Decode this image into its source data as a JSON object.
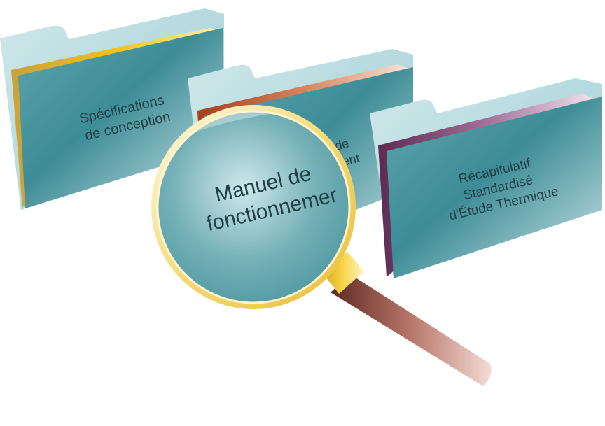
{
  "folders": [
    {
      "lines": [
        "Spécifications",
        "de conception"
      ],
      "accent": "#f2c21a"
    },
    {
      "lines": [
        "de",
        "nent"
      ],
      "accent": "#c4542c"
    },
    {
      "lines": [
        "Récapitulatif",
        "Standardisé",
        "d'Étude Thermique"
      ],
      "accent": "#7a3f6c"
    }
  ],
  "magnifier": {
    "lines": [
      "Manuel de",
      "fonctionnemer"
    ],
    "rim_color": "#f4d978",
    "handle_color": "#7a3b32"
  },
  "colors": {
    "folder_dark": "#3d8c96",
    "folder_light": "#c4e2e5",
    "tab": "#a9d3d7"
  }
}
